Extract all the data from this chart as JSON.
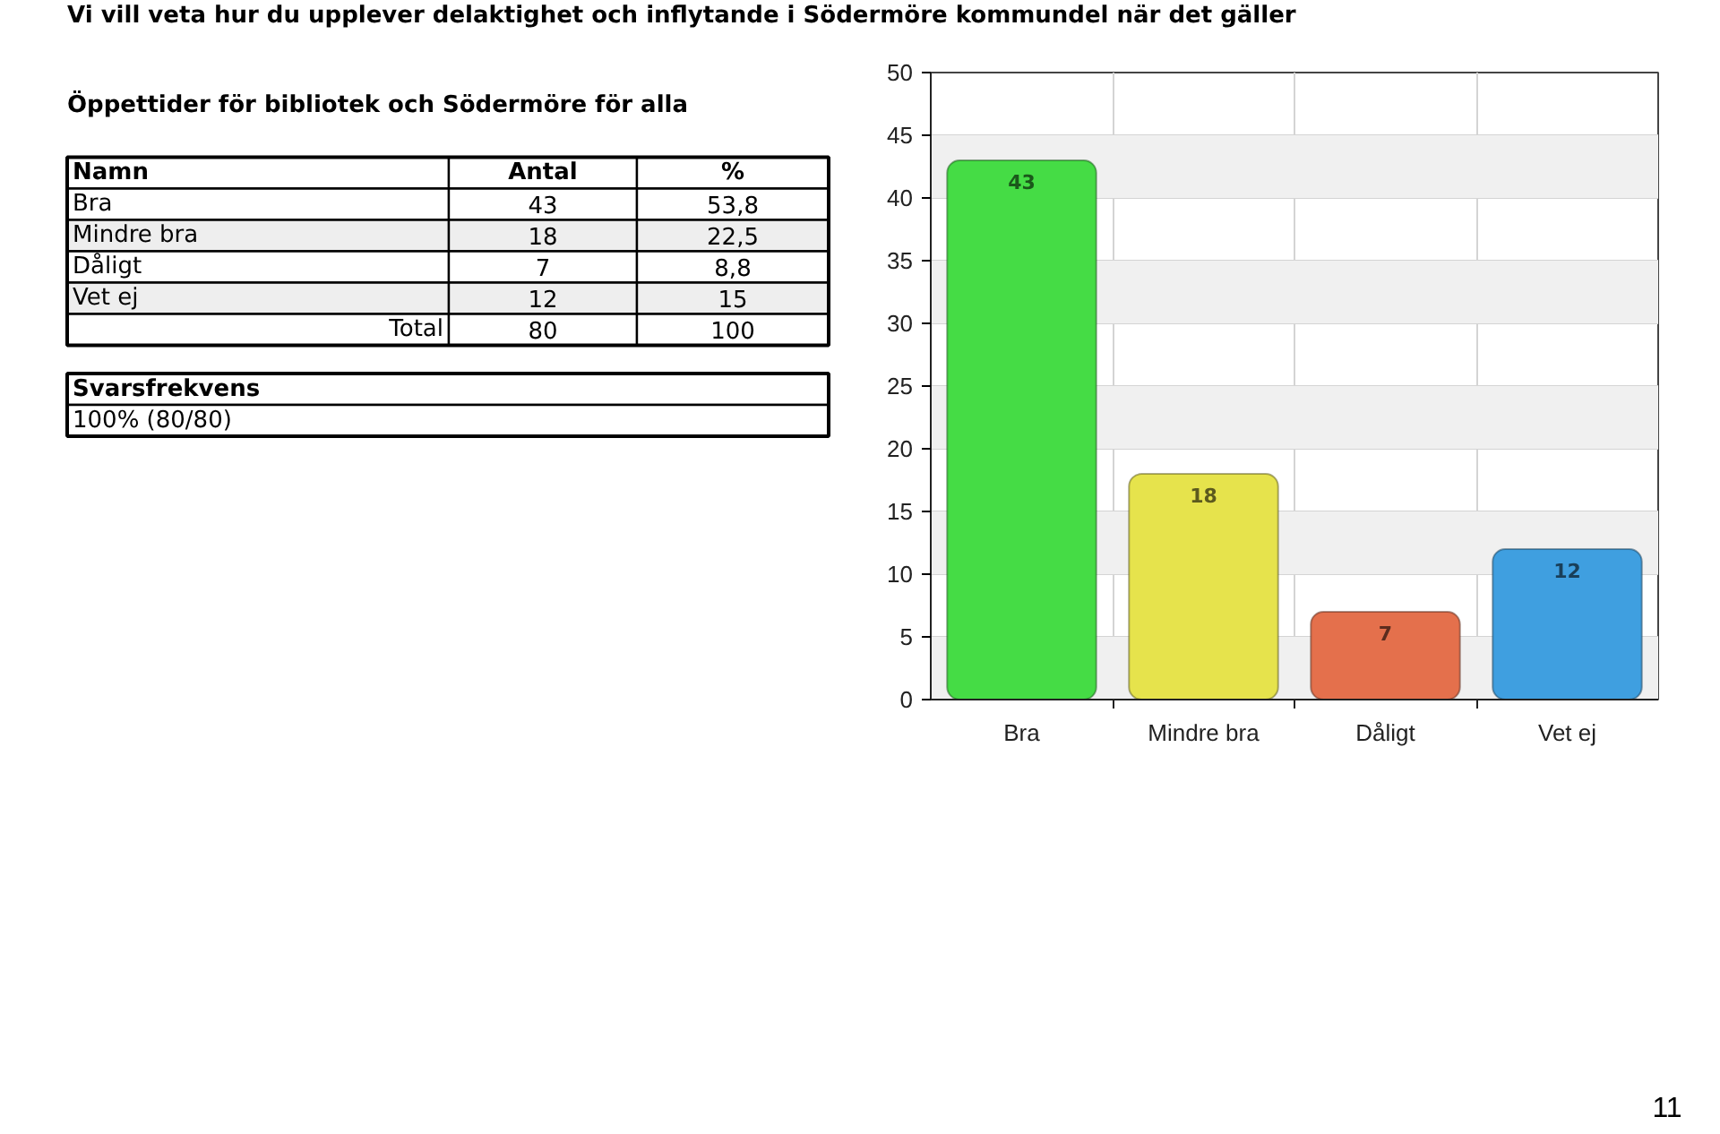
{
  "chart_data": {
    "type": "bar",
    "title": "Vi vill veta hur du upplever delaktighet och inflytande i Södermöre kommundel när det gäller",
    "subtitle": "Öppettider för bibliotek och Södermöre för alla",
    "categories": [
      "Bra",
      "Mindre bra",
      "Dåligt",
      "Vet ej"
    ],
    "values": [
      43,
      18,
      7,
      12
    ],
    "colors": [
      "#45dc45",
      "#e6e34c",
      "#e4704c",
      "#3f9fe0"
    ],
    "ylim": [
      0,
      50
    ],
    "yticks": [
      0,
      5,
      10,
      15,
      20,
      25,
      30,
      35,
      40,
      45,
      50
    ],
    "grid": true,
    "data_labels": true,
    "annotations": [
      "Namn",
      "Antal",
      "%",
      "43",
      "53,8",
      "18",
      "22,5",
      "7",
      "8,8",
      "12",
      "15",
      "Total",
      "80",
      "100",
      "Svarsfrekvens",
      "100% (80/80)",
      "11"
    ]
  }
}
